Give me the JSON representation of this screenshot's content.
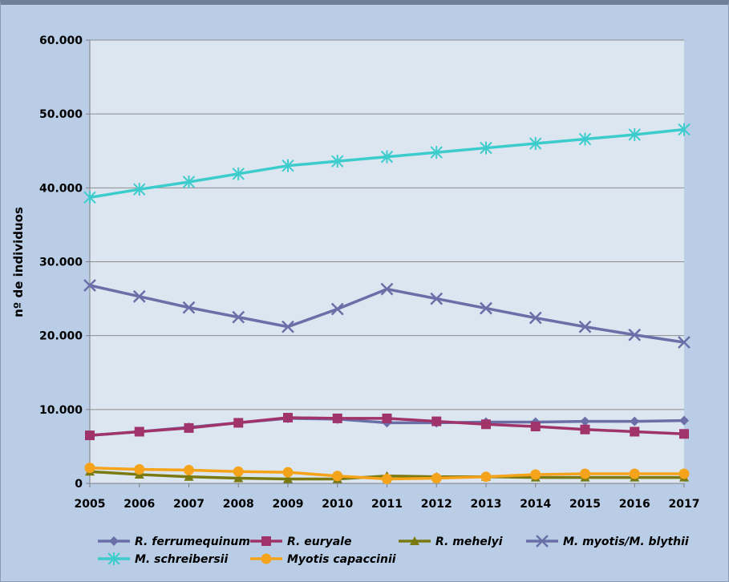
{
  "chart_data": {
    "type": "line",
    "title": "",
    "xlabel": "",
    "ylabel": "nº de individuos",
    "ylim": [
      0,
      60000
    ],
    "y_ticks": [
      "0",
      "10.000",
      "20.000",
      "30.000",
      "40.000",
      "50.000",
      "60.000"
    ],
    "x": [
      "2005",
      "2006",
      "2007",
      "2008",
      "2009",
      "2010",
      "2011",
      "2012",
      "2013",
      "2014",
      "2015",
      "2016",
      "2017"
    ],
    "grid": "horizontal",
    "legend_position": "bottom",
    "series": [
      {
        "name": "R. ferrumequinum",
        "color": "#6a6fa8",
        "marker": "diamond",
        "values": [
          6500,
          7000,
          7600,
          8200,
          8800,
          8700,
          8200,
          8200,
          8300,
          8300,
          8400,
          8400,
          8500
        ]
      },
      {
        "name": "R. euryale",
        "color": "#a0336a",
        "marker": "square",
        "values": [
          6500,
          7000,
          7500,
          8200,
          8900,
          8800,
          8800,
          8400,
          8000,
          7700,
          7300,
          7000,
          6700
        ]
      },
      {
        "name": "R. mehelyi",
        "color": "#7a7a10",
        "marker": "triangle",
        "values": [
          1600,
          1200,
          900,
          700,
          600,
          600,
          1000,
          900,
          900,
          800,
          800,
          800,
          800
        ]
      },
      {
        "name": "M. myotis/M. blythii",
        "color": "#6a6fa8",
        "marker": "x",
        "values": [
          26800,
          25300,
          23800,
          22500,
          21200,
          23600,
          26300,
          25000,
          23700,
          22400,
          21200,
          20100,
          19100
        ]
      },
      {
        "name": "M. schreibersii",
        "color": "#3dcccc",
        "marker": "asterisk",
        "values": [
          38700,
          39800,
          40800,
          41900,
          43000,
          43600,
          44200,
          44800,
          45400,
          46000,
          46600,
          47200,
          47900
        ]
      },
      {
        "name": "Myotis capaccinii",
        "color": "#f5a31a",
        "marker": "circle",
        "values": [
          2100,
          1900,
          1800,
          1600,
          1500,
          1000,
          600,
          700,
          900,
          1200,
          1300,
          1300,
          1300
        ]
      }
    ]
  }
}
